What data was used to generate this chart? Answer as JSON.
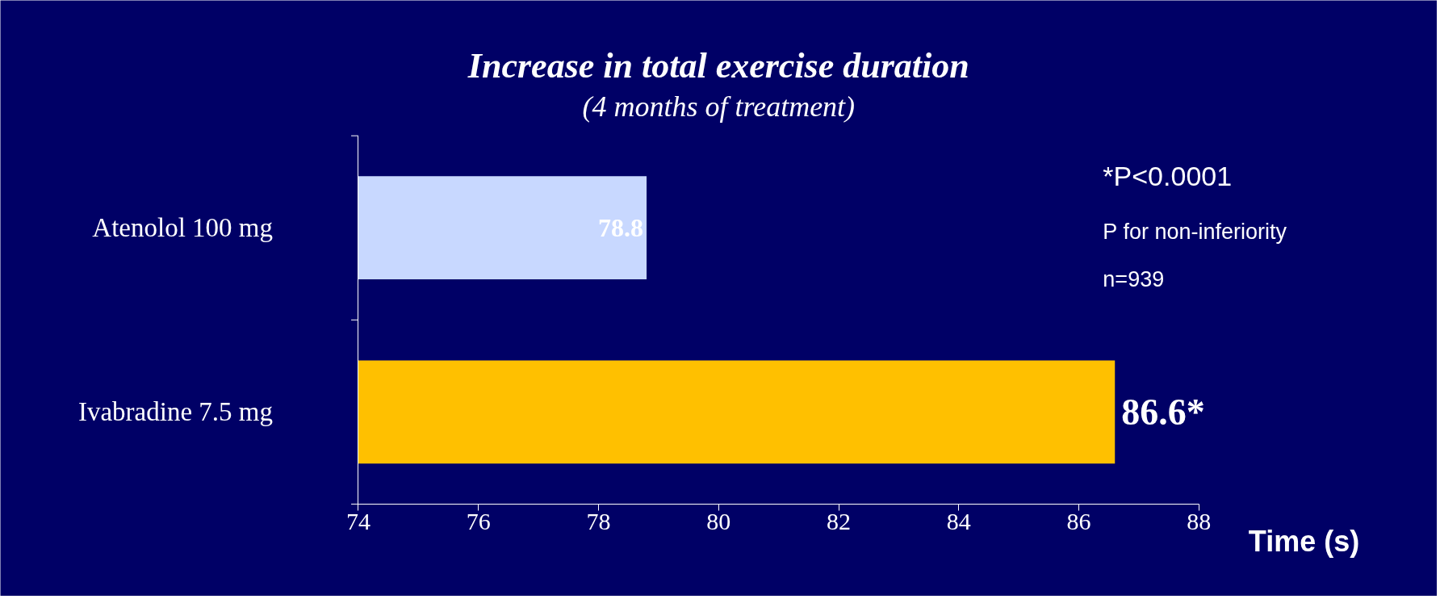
{
  "chart_data": {
    "type": "bar",
    "orientation": "horizontal",
    "title": "Increase in total exercise duration",
    "subtitle": "(4 months of treatment)",
    "xlabel": "Time (s)",
    "categories": [
      "Atenolol 100 mg",
      "Ivabradine 7.5 mg"
    ],
    "values": [
      78.8,
      86.6
    ],
    "colors": [
      "#c8d8ff",
      "#ffc000"
    ],
    "value_labels": [
      "78.8",
      "86.6*"
    ],
    "xlim": [
      74,
      88
    ],
    "xticks": [
      74,
      76,
      78,
      80,
      82,
      84,
      86,
      88
    ],
    "annotations": [
      "*P<0.0001",
      "P  for non-inferiority",
      "n=939"
    ]
  }
}
